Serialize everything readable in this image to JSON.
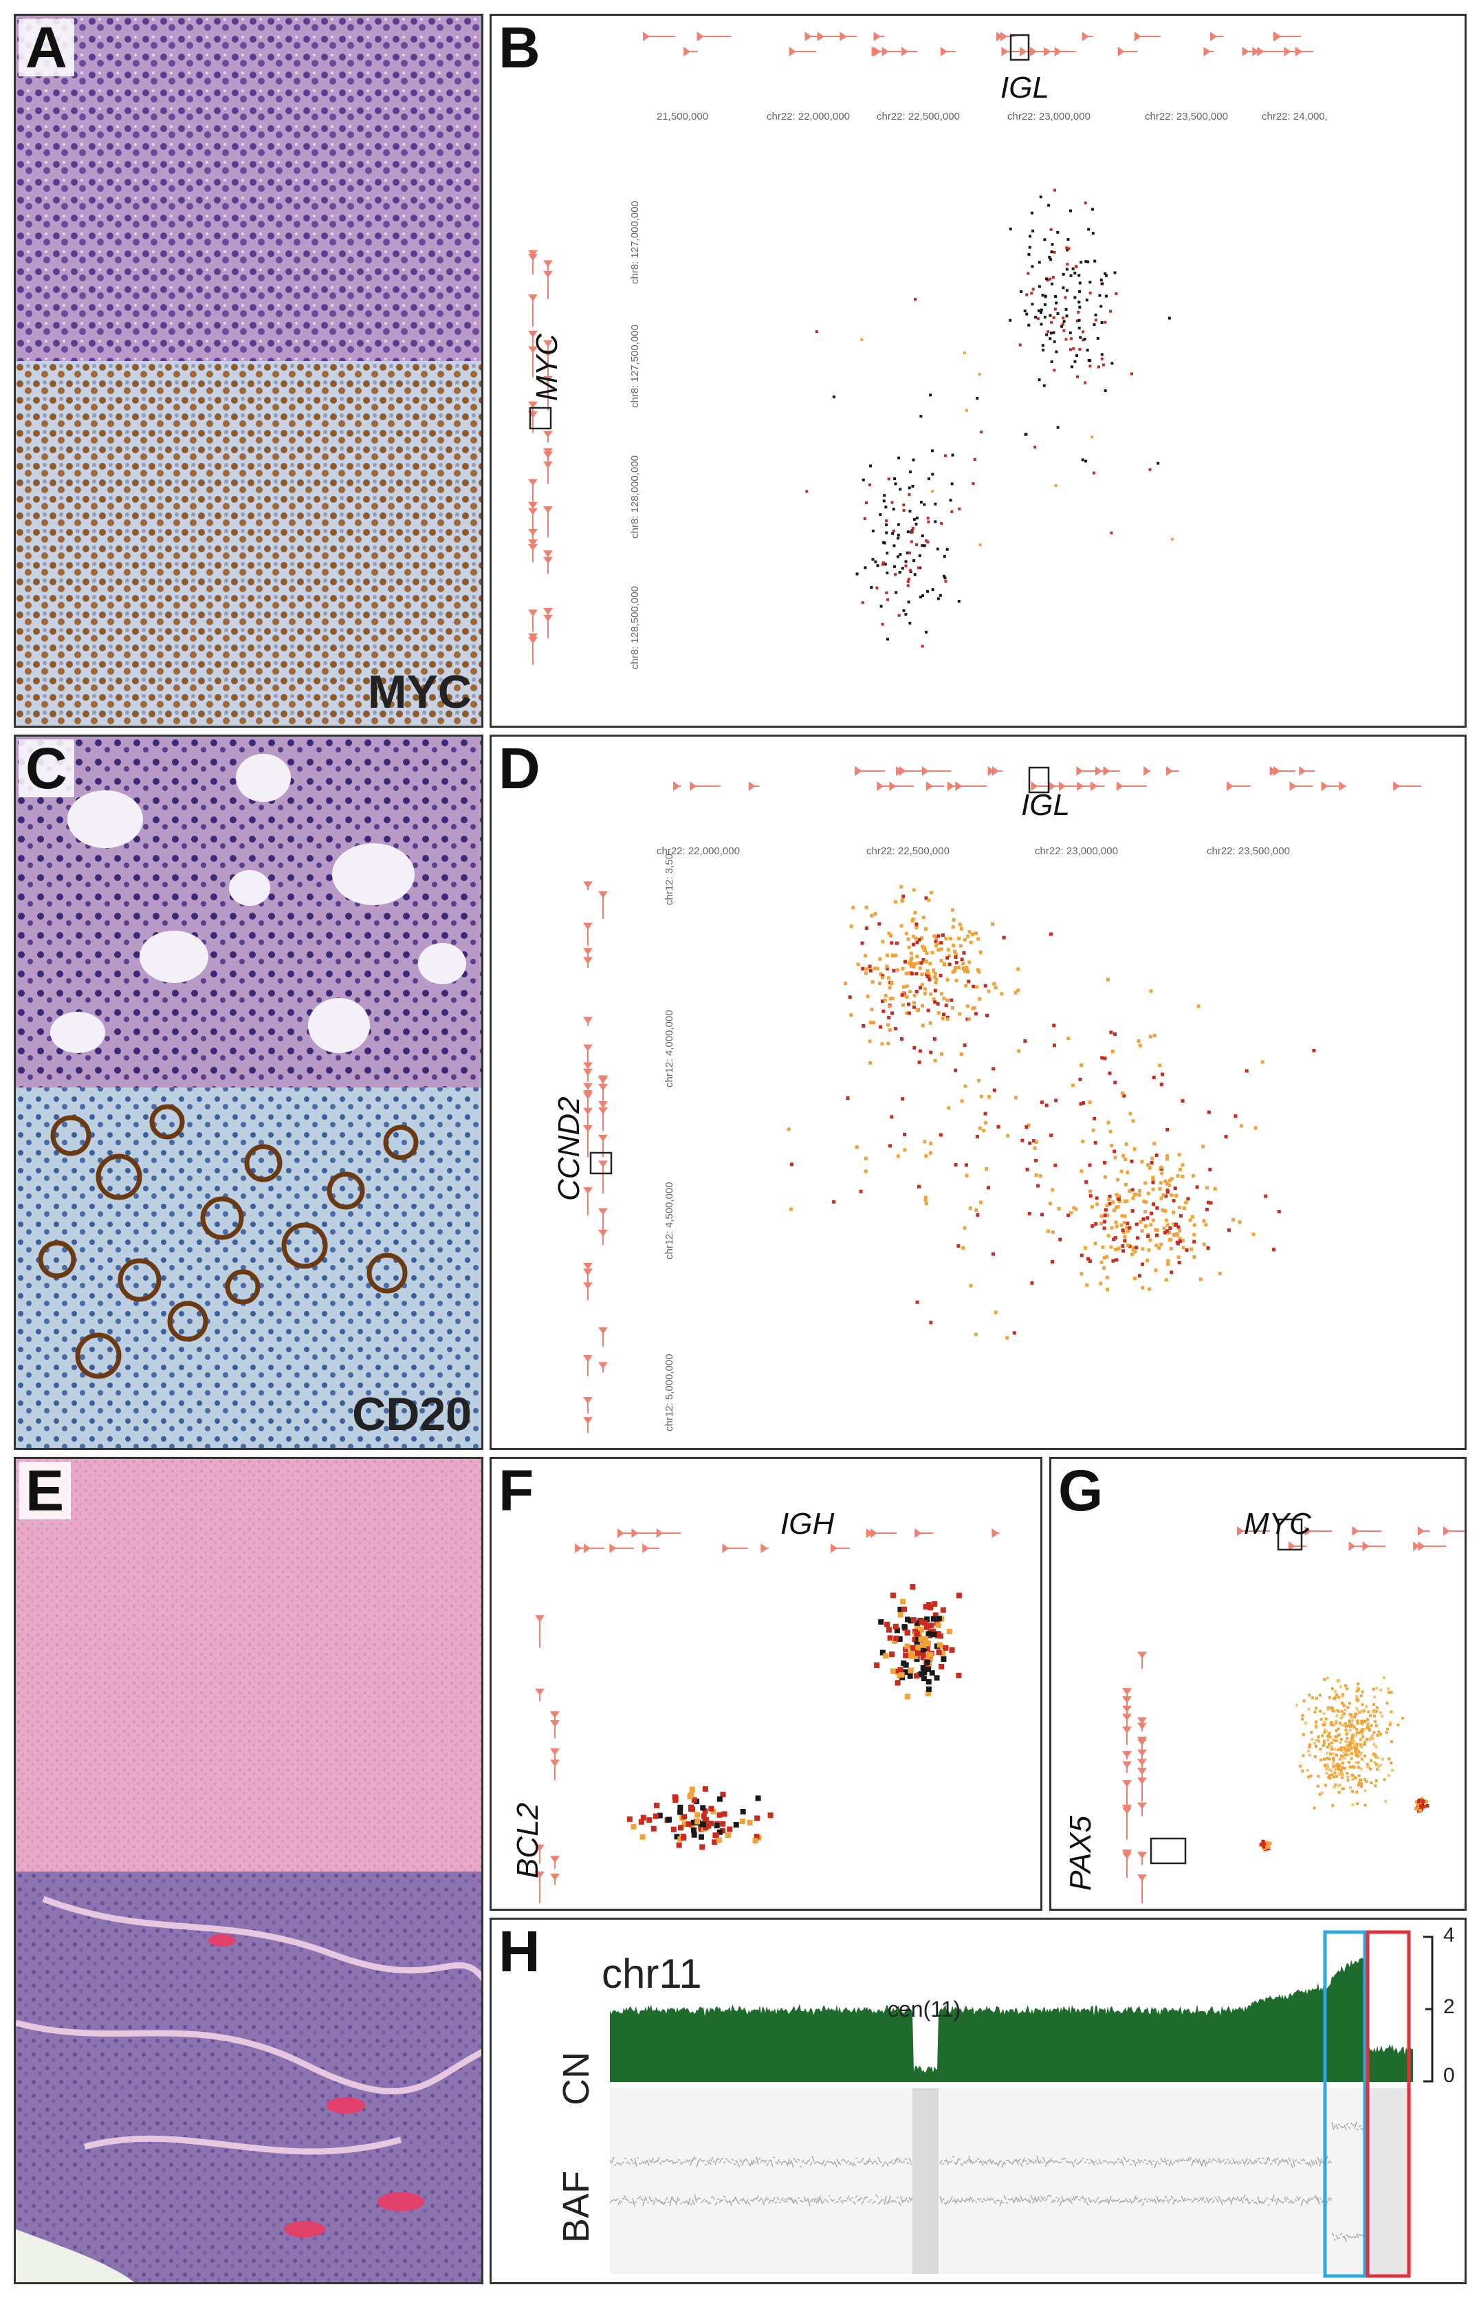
{
  "panels": {
    "A": {
      "label": "A",
      "stain": "MYC"
    },
    "B": {
      "label": "B",
      "gene_top": "IGL",
      "gene_left": "MYC",
      "x_ticks": [
        "21,500,000",
        "chr22: 22,000,000",
        "chr22: 22,500,000",
        "chr22: 23,000,000",
        "chr22: 23,500,000",
        "chr22: 24,000,"
      ],
      "y_ticks": [
        "chr8: 127,000,000",
        "chr8: 127,500,000",
        "chr8: 128,000,000",
        "chr8: 128,500,000"
      ]
    },
    "C": {
      "label": "C",
      "stain": "CD20"
    },
    "D": {
      "label": "D",
      "gene_top": "IGL",
      "gene_left": "CCND2",
      "x_ticks": [
        "chr22: 22,000,000",
        "chr22: 22,500,000",
        "chr22: 23,000,000",
        "chr22: 23,500,000"
      ],
      "y_ticks": [
        "chr12: 3,50",
        "chr12: 4,000,000",
        "chr12: 4,500,000",
        "chr12: 5,000,000"
      ]
    },
    "E": {
      "label": "E"
    },
    "F": {
      "label": "F",
      "gene_top": "IGH",
      "gene_left": "BCL2"
    },
    "G": {
      "label": "G",
      "gene_top": "MYC",
      "gene_left": "PAX5"
    },
    "H": {
      "label": "H",
      "chrom": "chr11",
      "centromere": "cen(11)",
      "cn_label": "CN",
      "baf_label": "BAF",
      "cn_axis": [
        "4",
        "2",
        "0"
      ],
      "highlight_colors": [
        "#2ea7e0",
        "#e0303a"
      ]
    }
  },
  "colors": {
    "cn_fill": "#1f6b2e",
    "gene_track": "#f08070",
    "contact_dark": "#1a1a1a",
    "contact_red": "#cc2a1e",
    "contact_orange": "#f4a236"
  }
}
